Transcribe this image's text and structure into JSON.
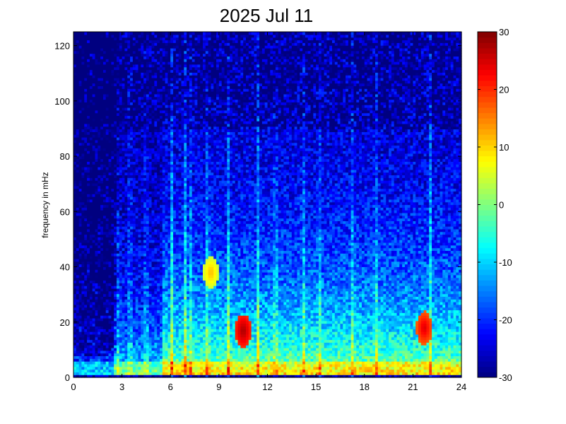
{
  "chart_data": {
    "type": "heatmap",
    "title": "2025 Jul 11",
    "xlabel": "",
    "ylabel": "frequency in mHz",
    "xlim": [
      0,
      24
    ],
    "ylim": [
      0,
      125
    ],
    "xticks": [
      0,
      3,
      6,
      9,
      12,
      15,
      18,
      21,
      24
    ],
    "yticks": [
      0,
      20,
      40,
      60,
      80,
      100,
      120
    ],
    "colorbar": {
      "colormap": "jet",
      "range": [
        -30,
        30
      ],
      "ticks": [
        -30,
        -20,
        -10,
        0,
        10,
        20,
        30
      ]
    },
    "grid": false,
    "bright_vertical_lines_x": [
      2.7,
      3.5,
      4.5,
      6.1,
      6.9,
      7.2,
      8.3,
      9.6,
      11.4,
      12.5,
      14.2,
      15.2,
      17.3,
      18.7,
      22.1
    ],
    "notable_hotspots": [
      {
        "x": 10.5,
        "y": 17,
        "value": 28
      },
      {
        "x": 21.7,
        "y": 18,
        "value": 25
      },
      {
        "x": 8.5,
        "y": 38,
        "value": 12
      }
    ]
  }
}
